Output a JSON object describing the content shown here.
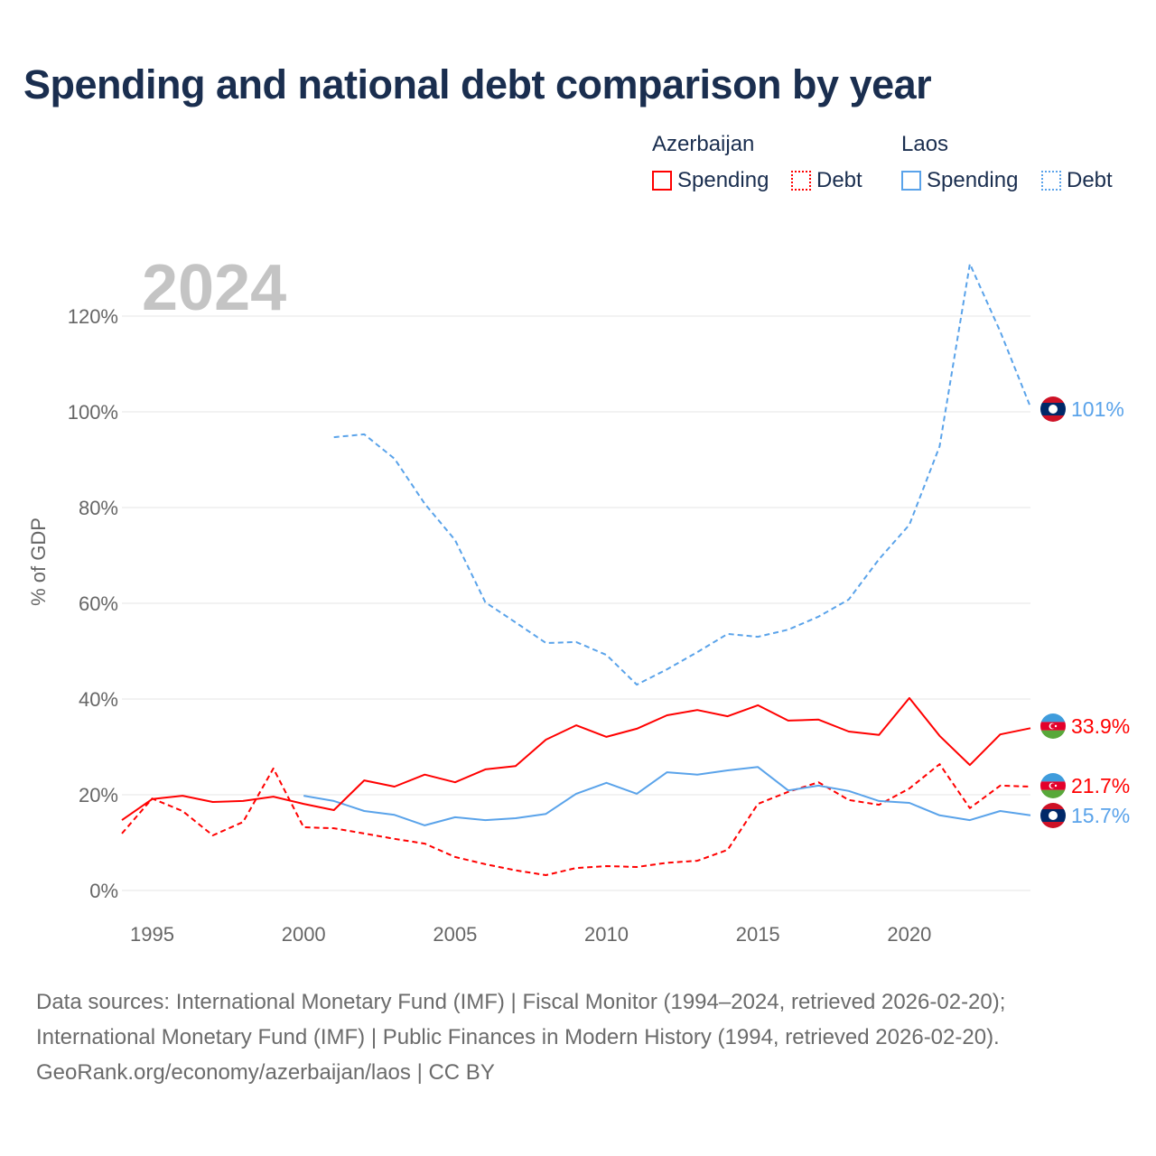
{
  "title": "Spending and national debt comparison by year",
  "legend": {
    "groups": [
      {
        "name": "Azerbaijan",
        "color": "#ff0000",
        "items": [
          "Spending",
          "Debt"
        ]
      },
      {
        "name": "Laos",
        "color": "#5aa3ea",
        "items": [
          "Spending",
          "Debt"
        ]
      }
    ]
  },
  "footer": {
    "line1": "Data sources: International Monetary Fund (IMF) | Fiscal Monitor (1994–2024, retrieved 2026-02-20);",
    "line2": "International Monetary Fund (IMF) | Public Finances in Modern History (1994, retrieved 2026-02-20).",
    "line3": "GeoRank.org/economy/azerbaijan/laos | CC BY"
  },
  "chart_data": {
    "type": "line",
    "title": "Spending and national debt comparison by year",
    "year_label": "2024",
    "ylabel": "% of GDP",
    "xlim": [
      1994,
      2024
    ],
    "ylim": [
      0,
      130
    ],
    "yticks": [
      0,
      20,
      40,
      60,
      80,
      100,
      120
    ],
    "ytick_labels": [
      "0%",
      "20%",
      "40%",
      "60%",
      "80%",
      "100%",
      "120%"
    ],
    "xticks": [
      1995,
      2000,
      2005,
      2010,
      2015,
      2020
    ],
    "xtick_labels": [
      "1995",
      "2000",
      "2005",
      "2010",
      "2015",
      "2020"
    ],
    "grid": true,
    "series": [
      {
        "name": "Azerbaijan Debt",
        "color": "#ff0000",
        "dash": true,
        "start": 1994,
        "end_label": "21.7%",
        "flag": "azerbaijan",
        "values": [
          11.9,
          19.2,
          16.6,
          11.5,
          14.3,
          25.5,
          13.2,
          13.0,
          11.9,
          10.8,
          9.8,
          7.0,
          5.5,
          4.2,
          3.2,
          4.7,
          5.1,
          4.9,
          5.8,
          6.2,
          8.5,
          18.1,
          20.6,
          22.6,
          18.9,
          17.9,
          21.3,
          26.4,
          17.2,
          21.9,
          21.7
        ]
      },
      {
        "name": "Laos Debt",
        "color": "#5aa3ea",
        "dash": true,
        "start": 2001,
        "end_label": "101%",
        "flag": "laos",
        "values": [
          94.7,
          95.3,
          90.2,
          80.8,
          73.2,
          60.2,
          56.0,
          51.7,
          51.9,
          49.2,
          43.0,
          46.2,
          49.8,
          53.6,
          53.0,
          54.5,
          57.2,
          60.8,
          69.2,
          76.4,
          92.8,
          130.9,
          116.8,
          101
        ]
      },
      {
        "name": "Laos Spending",
        "color": "#5aa3ea",
        "dash": false,
        "start": 2000,
        "end_label": "15.7%",
        "flag": "laos",
        "values": [
          19.8,
          18.7,
          16.6,
          15.8,
          13.6,
          15.3,
          14.7,
          15.1,
          16.0,
          20.2,
          22.5,
          20.2,
          24.7,
          24.2,
          25.1,
          25.8,
          20.9,
          21.9,
          20.8,
          18.7,
          18.3,
          15.7,
          14.7,
          16.6,
          15.7
        ]
      },
      {
        "name": "Azerbaijan Spending",
        "color": "#ff0000",
        "dash": false,
        "start": 1994,
        "end_label": "33.9%",
        "flag": "azerbaijan",
        "values": [
          14.7,
          19.1,
          19.8,
          18.5,
          18.7,
          19.6,
          18.1,
          16.8,
          23.0,
          21.7,
          24.2,
          22.6,
          25.3,
          26.0,
          31.5,
          34.5,
          32.1,
          33.8,
          36.6,
          37.7,
          36.4,
          38.7,
          35.5,
          35.7,
          33.2,
          32.5,
          40.2,
          32.3,
          26.2,
          32.6,
          33.9
        ]
      }
    ]
  }
}
